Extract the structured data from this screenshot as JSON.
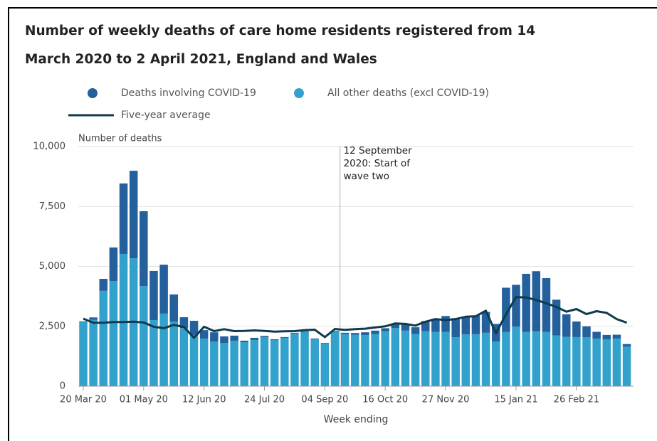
{
  "chart_data": {
    "type": "stacked-bar-line",
    "title": [
      "Number of weekly deaths of care home residents registered from 14",
      "March 2020 to 2 April 2021, England and Wales"
    ],
    "y_label": "Number of deaths",
    "x_label": "Week ending",
    "annotation": [
      "12 September",
      "2020: Start of",
      "wave two"
    ],
    "categories": [
      "20 Mar 20",
      null,
      null,
      null,
      null,
      null,
      "01 May 20",
      null,
      null,
      null,
      null,
      null,
      "12 Jun 20",
      null,
      null,
      null,
      null,
      null,
      "24 Jul 20",
      null,
      null,
      null,
      null,
      null,
      "04 Sep 20",
      null,
      null,
      null,
      null,
      null,
      "16 Oct 20",
      null,
      null,
      null,
      null,
      null,
      "27 Nov 20",
      null,
      null,
      null,
      null,
      null,
      null,
      "15 Jan 21",
      null,
      null,
      null,
      null,
      null,
      "26 Feb 21",
      null,
      null,
      null,
      null,
      null
    ],
    "series": [
      {
        "name": "Deaths involving COVID-19",
        "color": "#24609b",
        "kind": "bar",
        "values": [
          10,
          100,
          500,
          1400,
          2940,
          3650,
          3120,
          2050,
          2040,
          1130,
          450,
          590,
          350,
          380,
          270,
          210,
          60,
          90,
          50,
          40,
          30,
          30,
          30,
          30,
          20,
          30,
          50,
          70,
          120,
          140,
          120,
          160,
          250,
          280,
          420,
          550,
          660,
          800,
          720,
          780,
          870,
          730,
          1850,
          1740,
          2420,
          2510,
          2240,
          1490,
          940,
          650,
          460,
          280,
          190,
          160,
          110
        ]
      },
      {
        "name": "All other deaths (excl COVID-19)",
        "color": "#32a2cc",
        "kind": "bar",
        "values": [
          2700,
          2770,
          3980,
          4390,
          5520,
          5340,
          4180,
          2760,
          3030,
          2700,
          2430,
          2140,
          1990,
          1870,
          1810,
          1900,
          1840,
          1930,
          2050,
          1920,
          2020,
          2200,
          2260,
          1960,
          1790,
          2280,
          2180,
          2150,
          2130,
          2180,
          2300,
          2430,
          2320,
          2180,
          2300,
          2270,
          2270,
          2040,
          2160,
          2170,
          2230,
          1870,
          2260,
          2490,
          2270,
          2290,
          2270,
          2120,
          2060,
          2050,
          2040,
          1990,
          1950,
          1990,
          1650
        ]
      },
      {
        "name": "Five-year average",
        "color": "#0e3b4f",
        "kind": "line",
        "values": [
          2820,
          2650,
          2650,
          2680,
          2680,
          2690,
          2660,
          2480,
          2420,
          2560,
          2470,
          2020,
          2480,
          2300,
          2380,
          2300,
          2310,
          2330,
          2310,
          2280,
          2290,
          2300,
          2340,
          2360,
          2050,
          2390,
          2350,
          2380,
          2400,
          2450,
          2500,
          2620,
          2600,
          2530,
          2690,
          2800,
          2760,
          2800,
          2900,
          2920,
          3150,
          2210,
          3000,
          3720,
          3700,
          3600,
          3460,
          3310,
          3110,
          3220,
          3010,
          3130,
          3060,
          2800,
          2650
        ]
      }
    ],
    "ylim": [
      0,
      10000
    ],
    "yticks": [
      0,
      {
        "value": 2500,
        "label": "2,500"
      },
      {
        "value": 5000,
        "label": "5,000"
      },
      {
        "value": 7500,
        "label": "7,500"
      },
      {
        "value": 10000,
        "label": "10,000"
      }
    ],
    "grid": true
  }
}
